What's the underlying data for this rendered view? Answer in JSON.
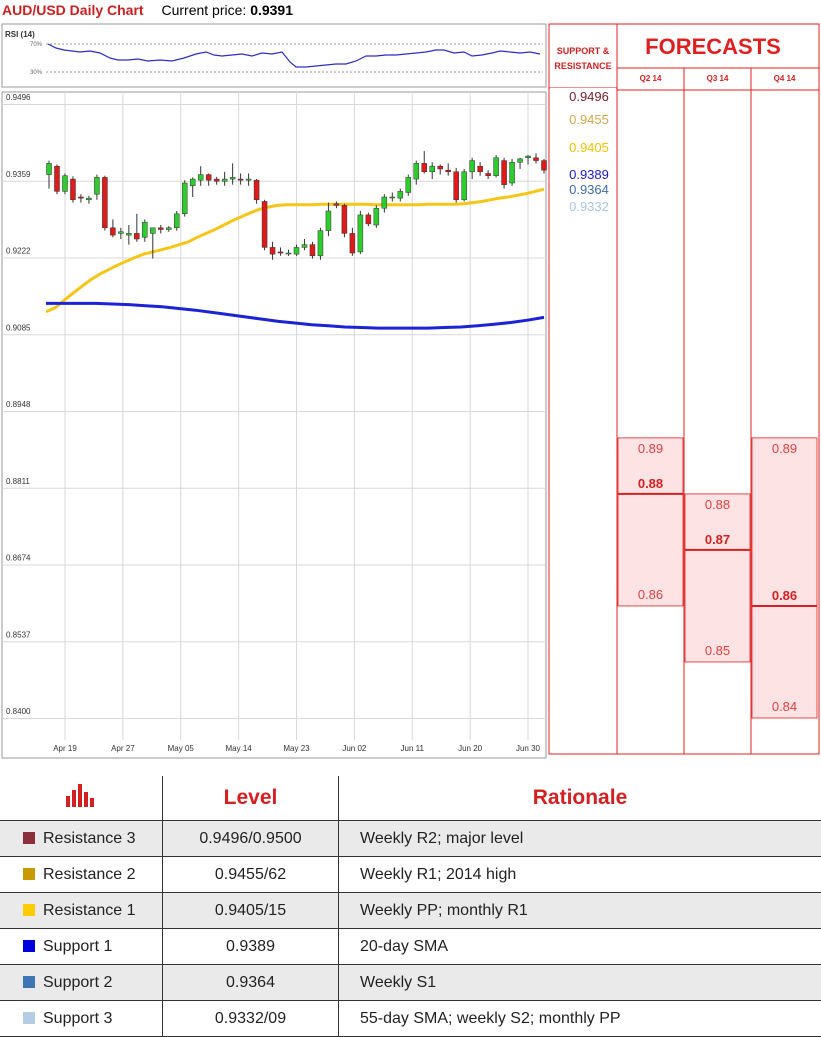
{
  "header": {
    "title": "AUD/USD Daily Chart",
    "price_label": "Current price:",
    "price_value": "0.9391"
  },
  "rsi_panel": {
    "label": "RSI (14)",
    "level_high": "70%",
    "level_low": "30%"
  },
  "chart_data": {
    "type": "candlestick",
    "title": "AUD/USD Daily Chart",
    "ylim": [
      0.84,
      0.9496
    ],
    "y_ticks": [
      "0.9496",
      "0.9359",
      "0.9222",
      "0.9085",
      "0.8948",
      "0.8811",
      "0.8674",
      "0.8537",
      "0.8400"
    ],
    "x_ticks": [
      "Apr 19",
      "Apr 27",
      "May 05",
      "May 14",
      "May 23",
      "Jun 02",
      "Jun 11",
      "Jun 20",
      "Jun 30"
    ],
    "candles": [
      [
        0.937,
        0.9395,
        0.9345,
        0.939
      ],
      [
        0.9385,
        0.9388,
        0.9335,
        0.934
      ],
      [
        0.934,
        0.9372,
        0.9335,
        0.9368
      ],
      [
        0.9362,
        0.9367,
        0.932,
        0.9325
      ],
      [
        0.933,
        0.9335,
        0.932,
        0.9328
      ],
      [
        0.9325,
        0.9332,
        0.9318,
        0.9328
      ],
      [
        0.9335,
        0.937,
        0.9325,
        0.9365
      ],
      [
        0.9365,
        0.9368,
        0.927,
        0.9275
      ],
      [
        0.9275,
        0.929,
        0.9258,
        0.9262
      ],
      [
        0.9265,
        0.9275,
        0.9255,
        0.9268
      ],
      [
        0.9262,
        0.928,
        0.9245,
        0.9265
      ],
      [
        0.9265,
        0.93,
        0.925,
        0.9255
      ],
      [
        0.9258,
        0.929,
        0.925,
        0.9285
      ],
      [
        0.9265,
        0.9275,
        0.922,
        0.9275
      ],
      [
        0.9275,
        0.928,
        0.9265,
        0.9272
      ],
      [
        0.9272,
        0.9278,
        0.9268,
        0.9275
      ],
      [
        0.9275,
        0.9305,
        0.927,
        0.93
      ],
      [
        0.93,
        0.936,
        0.9295,
        0.9355
      ],
      [
        0.935,
        0.9365,
        0.933,
        0.9362
      ],
      [
        0.936,
        0.9385,
        0.935,
        0.937
      ],
      [
        0.937,
        0.9372,
        0.935,
        0.936
      ],
      [
        0.9362,
        0.9366,
        0.9352,
        0.9358
      ],
      [
        0.9358,
        0.9375,
        0.935,
        0.9362
      ],
      [
        0.9362,
        0.939,
        0.9352,
        0.9365
      ],
      [
        0.9362,
        0.9372,
        0.9352,
        0.936
      ],
      [
        0.936,
        0.9372,
        0.935,
        0.9362
      ],
      [
        0.936,
        0.9362,
        0.9318,
        0.9325
      ],
      [
        0.9322,
        0.9325,
        0.9235,
        0.924
      ],
      [
        0.924,
        0.925,
        0.9218,
        0.9228
      ],
      [
        0.9232,
        0.924,
        0.9225,
        0.923
      ],
      [
        0.923,
        0.9236,
        0.9225,
        0.923
      ],
      [
        0.9228,
        0.9245,
        0.9225,
        0.924
      ],
      [
        0.924,
        0.9255,
        0.9235,
        0.9245
      ],
      [
        0.9245,
        0.925,
        0.922,
        0.9225
      ],
      [
        0.9225,
        0.9275,
        0.9218,
        0.927
      ],
      [
        0.927,
        0.932,
        0.926,
        0.9305
      ],
      [
        0.9318,
        0.9322,
        0.931,
        0.9315
      ],
      [
        0.9315,
        0.9318,
        0.9258,
        0.9265
      ],
      [
        0.9265,
        0.9275,
        0.9225,
        0.923
      ],
      [
        0.9232,
        0.9305,
        0.9228,
        0.9298
      ],
      [
        0.9298,
        0.9302,
        0.9278,
        0.9282
      ],
      [
        0.928,
        0.9315,
        0.9275,
        0.931
      ],
      [
        0.931,
        0.9335,
        0.9302,
        0.933
      ],
      [
        0.933,
        0.9338,
        0.9322,
        0.933
      ],
      [
        0.9328,
        0.9345,
        0.9322,
        0.934
      ],
      [
        0.9338,
        0.937,
        0.9332,
        0.9365
      ],
      [
        0.9362,
        0.9395,
        0.9352,
        0.939
      ],
      [
        0.939,
        0.9412,
        0.9372,
        0.9375
      ],
      [
        0.9375,
        0.9392,
        0.9362,
        0.9385
      ],
      [
        0.9385,
        0.9388,
        0.937,
        0.938
      ],
      [
        0.9378,
        0.939,
        0.9368,
        0.9375
      ],
      [
        0.9375,
        0.9382,
        0.932,
        0.9325
      ],
      [
        0.9325,
        0.938,
        0.9322,
        0.9375
      ],
      [
        0.9375,
        0.94,
        0.9362,
        0.9395
      ],
      [
        0.9385,
        0.9392,
        0.9368,
        0.9375
      ],
      [
        0.9372,
        0.9378,
        0.9362,
        0.9368
      ],
      [
        0.9368,
        0.9405,
        0.9365,
        0.94
      ],
      [
        0.9395,
        0.94,
        0.9345,
        0.9352
      ],
      [
        0.9355,
        0.9398,
        0.935,
        0.9392
      ],
      [
        0.9392,
        0.94,
        0.938,
        0.9398
      ],
      [
        0.94,
        0.9405,
        0.9388,
        0.9403
      ],
      [
        0.94,
        0.9408,
        0.939,
        0.9395
      ],
      [
        0.9395,
        0.9398,
        0.9372,
        0.9378
      ]
    ],
    "series": [
      {
        "values": [
          0.9125,
          0.9132,
          0.9145,
          0.9158,
          0.917,
          0.9182,
          0.9192,
          0.92,
          0.9208,
          0.9215,
          0.9222,
          0.9228,
          0.9232,
          0.9236,
          0.924,
          0.9245,
          0.925,
          0.9258,
          0.9265,
          0.9272,
          0.928,
          0.9288,
          0.9295,
          0.9302,
          0.9308,
          0.9312,
          0.9315,
          0.9316,
          0.9316,
          0.9316,
          0.9316,
          0.9317,
          0.9317,
          0.9317,
          0.9317,
          0.9317,
          0.9317,
          0.9316,
          0.9316,
          0.9316,
          0.9316,
          0.9316,
          0.9316,
          0.9317,
          0.9317,
          0.9317,
          0.9317,
          0.9318,
          0.932,
          0.9322,
          0.9325,
          0.9328,
          0.933,
          0.9333,
          0.9336,
          0.934,
          0.9344
        ]
      },
      {
        "values": [
          0.914,
          0.914,
          0.914,
          0.914,
          0.9139,
          0.9138,
          0.9136,
          0.9134,
          0.9131,
          0.9128,
          0.9124,
          0.912,
          0.9116,
          0.9112,
          0.9108,
          0.9105,
          0.9102,
          0.91,
          0.9098,
          0.9097,
          0.9096,
          0.9096,
          0.9096,
          0.9096,
          0.9097,
          0.9098,
          0.91,
          0.9103,
          0.9106,
          0.911,
          0.9115
        ]
      }
    ],
    "levels": [
      {
        "name": "Resistance 3",
        "value": 0.9496,
        "color": "#7b1b2a",
        "label": "0.9496"
      },
      {
        "name": "Resistance 2",
        "value": 0.9455,
        "color": "#d1a84b",
        "label": "0.9455"
      },
      {
        "name": "Resistance 1",
        "value": 0.9405,
        "color": "#f2c200",
        "label": "0.9405"
      },
      {
        "name": "Support 1",
        "value": 0.9389,
        "color": "#1a1ac8",
        "label": "0.9389"
      },
      {
        "name": "Support 2",
        "value": 0.9364,
        "color": "#3d6fa6",
        "label": "0.9364"
      },
      {
        "name": "Support 3",
        "value": 0.9332,
        "color": "#a9c6de",
        "label": "0.9332"
      }
    ]
  },
  "sr_header": {
    "line1": "SUPPORT &",
    "line2": "RESISTANCE"
  },
  "forecasts": {
    "title": "FORECASTS",
    "columns": [
      {
        "label": "Q2 14",
        "high": 0.89,
        "low": 0.86,
        "median": 0.88,
        "high_label": "0.89",
        "median_label": "0.88",
        "low_label": "0.86"
      },
      {
        "label": "Q3 14",
        "high": 0.88,
        "low": 0.85,
        "median": 0.87,
        "high_label": "0.88",
        "median_label": "0.87",
        "low_label": "0.85"
      },
      {
        "label": "Q4 14",
        "high": 0.89,
        "low": 0.84,
        "median": 0.86,
        "high_label": "0.89",
        "median_label": "0.86",
        "low_label": "0.84"
      }
    ]
  },
  "levels_table": {
    "headers": {
      "level": "Level",
      "rationale": "Rationale"
    },
    "rows": [
      {
        "name": "Resistance 3",
        "color": "#8b2f3c",
        "level": "0.9496/0.9500",
        "rationale": "Weekly R2; major level"
      },
      {
        "name": "Resistance 2",
        "color": "#c99a00",
        "level": "0.9455/62",
        "rationale": "Weekly R1; 2014 high"
      },
      {
        "name": "Resistance 1",
        "color": "#ffcc00",
        "level": "0.9405/15",
        "rationale": "Weekly PP;  monthly R1"
      },
      {
        "name": "Support 1",
        "color": "#0000dd",
        "level": "0.9389",
        "rationale": "20-day SMA"
      },
      {
        "name": "Support 2",
        "color": "#3f74b5",
        "level": "0.9364",
        "rationale": "Weekly S1"
      },
      {
        "name": "Support 3",
        "color": "#b4cde5",
        "level": "0.9332/09",
        "rationale": "55-day SMA; weekly S2; monthly PP"
      }
    ]
  }
}
